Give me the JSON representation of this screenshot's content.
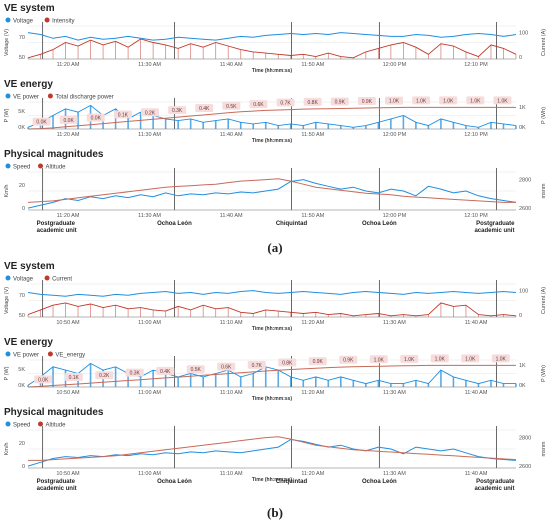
{
  "colors": {
    "blue": "#1f8fe0",
    "red": "#c0392b",
    "cum": "#c86a5a",
    "label_bg": "#f6dcdc",
    "vline": "#444444",
    "grid": "#e6e6e6",
    "axis": "#777777"
  },
  "x_axis_label": "Time (hh:mm:ss)",
  "figures": [
    {
      "id": "a",
      "sublabel": "(a)",
      "panels": [
        {
          "title": "VE system",
          "legend": [
            "Voltage",
            "Intensity"
          ],
          "ylabel_left": "Voltage (V)",
          "ylabel_right": "Current (A)",
          "left_ticks": [
            "50",
            "70"
          ],
          "right_ticks": [
            "0",
            "100"
          ],
          "x_ticks": [
            "11:20 AM",
            "11:30 AM",
            "11:40 AM",
            "11:50 AM",
            "12:00 PM",
            "12:10 PM"
          ],
          "xlabel": "Time (hh:mm:ss)",
          "vlines": [
            0.03,
            0.3,
            0.54,
            0.72,
            0.96
          ],
          "chart_data": {
            "type": "line",
            "x_range": [
              "11:17 AM",
              "12:13 PM"
            ],
            "series": [
              {
                "name": "Voltage",
                "axis": "left",
                "values": [
                  68,
                  66,
                  62,
                  64,
                  60,
                  63,
                  61,
                  62,
                  64,
                  62,
                  60,
                  61,
                  63,
                  62,
                  61,
                  60,
                  62,
                  64,
                  63,
                  65,
                  66,
                  67,
                  66,
                  67,
                  66,
                  68,
                  67,
                  66,
                  65,
                  64,
                  64,
                  66,
                  65,
                  63,
                  64,
                  66,
                  67,
                  66,
                  64,
                  66
                ]
              },
              {
                "name": "Intensity",
                "axis": "right",
                "values": [
                  5,
                  20,
                  40,
                  70,
                  55,
                  80,
                  60,
                  75,
                  50,
                  85,
                  70,
                  60,
                  45,
                  65,
                  50,
                  70,
                  55,
                  40,
                  30,
                  25,
                  20,
                  15,
                  20,
                  10,
                  25,
                  10,
                  5,
                  30,
                  45,
                  60,
                  70,
                  50,
                  20,
                  65,
                  55,
                  30,
                  10,
                  60,
                  45,
                  20
                ]
              }
            ]
          }
        },
        {
          "title": "VE energy",
          "legend": [
            "VE power",
            "Total discharge power"
          ],
          "ylabel_left": "P (W)",
          "ylabel_right": "P (Wh)",
          "left_ticks": [
            "0K",
            "5K"
          ],
          "right_ticks": [
            "0K",
            "1K"
          ],
          "x_ticks": [
            "11:20 AM",
            "11:30 AM",
            "11:40 AM",
            "11:50 AM",
            "12:00 PM",
            "12:10 PM"
          ],
          "xlabel": "Time (hh:mm:ss)",
          "vlines": [
            0.03,
            0.3,
            0.54,
            0.72,
            0.96
          ],
          "energy_labels": [
            "0.0K",
            "0.0K",
            "0.0K",
            "0.1K",
            "0.2K",
            "0.3K",
            "0.4K",
            "0.5K",
            "0.6K",
            "0.7K",
            "0.8K",
            "0.9K",
            "0.9K",
            "1.0K",
            "1.0K",
            "1.0K",
            "1.0K",
            "1.0K"
          ],
          "chart_data": {
            "type": "line",
            "series": [
              {
                "name": "VE power",
                "axis": "left",
                "values": [
                  0.5,
                  2,
                  4,
                  6,
                  5,
                  7,
                  4,
                  6,
                  3,
                  5,
                  4,
                  3,
                  2.5,
                  3,
                  2,
                  2.5,
                  3,
                  2,
                  1.5,
                  2,
                  1,
                  1.5,
                  1,
                  2,
                  1.5,
                  1,
                  0.5,
                  1,
                  2,
                  3,
                  4,
                  2,
                  1,
                  3,
                  2,
                  1,
                  0.5,
                  2,
                  1.5,
                  1
                ]
              },
              {
                "name": "Total discharge power",
                "axis": "right",
                "values": [
                  0.0,
                  0.02,
                  0.05,
                  0.1,
                  0.15,
                  0.2,
                  0.25,
                  0.3,
                  0.35,
                  0.4,
                  0.45,
                  0.5,
                  0.55,
                  0.6,
                  0.65,
                  0.7,
                  0.75,
                  0.8,
                  0.83,
                  0.86,
                  0.88,
                  0.9,
                  0.92,
                  0.93,
                  0.94,
                  0.95,
                  0.96,
                  0.97,
                  0.98,
                  0.99,
                  1.0,
                  1.0,
                  1.0,
                  1.0,
                  1.0,
                  1.0,
                  1.0,
                  1.0,
                  1.0,
                  1.0
                ]
              }
            ]
          }
        },
        {
          "title": "Physical magnitudes",
          "legend": [
            "Speed",
            "Altitude"
          ],
          "ylabel_left": "Km/h",
          "ylabel_right": "msnm",
          "left_ticks": [
            "0",
            "20"
          ],
          "right_ticks": [
            "2600",
            "2800"
          ],
          "x_ticks": [
            "11:20 AM",
            "11:30 AM",
            "11:40 AM",
            "11:50 AM",
            "12:00 PM",
            "12:10 PM"
          ],
          "xlabel": "",
          "vlines": [
            0.03,
            0.3,
            0.54,
            0.72,
            0.96
          ],
          "places": [
            "Postgraduate academic unit",
            "Ochoa León",
            "Chiquintad",
            "Ochoa León",
            "Postgraduate academic unit"
          ],
          "chart_data": {
            "type": "line",
            "series": [
              {
                "name": "Speed",
                "axis": "left",
                "values": [
                  2,
                  5,
                  8,
                  12,
                  10,
                  14,
                  12,
                  15,
                  13,
                  16,
                  14,
                  18,
                  15,
                  17,
                  16,
                  18,
                  17,
                  19,
                  18,
                  20,
                  22,
                  30,
                  32,
                  28,
                  25,
                  22,
                  24,
                  20,
                  18,
                  22,
                  20,
                  15,
                  25,
                  22,
                  18,
                  20,
                  15,
                  12,
                  10,
                  8
                ]
              },
              {
                "name": "Altitude",
                "axis": "right",
                "values": [
                  2600,
                  2605,
                  2610,
                  2620,
                  2630,
                  2640,
                  2650,
                  2660,
                  2670,
                  2680,
                  2690,
                  2700,
                  2705,
                  2710,
                  2715,
                  2720,
                  2730,
                  2740,
                  2745,
                  2750,
                  2755,
                  2740,
                  2720,
                  2700,
                  2690,
                  2680,
                  2670,
                  2660,
                  2655,
                  2650,
                  2640,
                  2635,
                  2630,
                  2625,
                  2620,
                  2615,
                  2610,
                  2605,
                  2600,
                  2600
                ]
              }
            ]
          }
        }
      ]
    },
    {
      "id": "b",
      "sublabel": "(b)",
      "panels": [
        {
          "title": "VE system",
          "legend": [
            "Voltage",
            "Current"
          ],
          "ylabel_left": "Voltage (V)",
          "ylabel_right": "Current (A)",
          "left_ticks": [
            "50",
            "70"
          ],
          "right_ticks": [
            "0",
            "100"
          ],
          "x_ticks": [
            "10:50 AM",
            "11:00 AM",
            "11:10 AM",
            "11:20 AM",
            "11:30 AM",
            "11:40 AM"
          ],
          "xlabel": "Time (hh:mm:ss)",
          "vlines": [
            0.03,
            0.3,
            0.54,
            0.72,
            0.96
          ],
          "chart_data": {
            "type": "line",
            "series": [
              {
                "name": "Voltage",
                "axis": "left",
                "values": [
                  66,
                  64,
                  63,
                  62,
                  64,
                  63,
                  62,
                  64,
                  63,
                  65,
                  66,
                  67,
                  65,
                  66,
                  64,
                  66,
                  65,
                  67,
                  68,
                  66,
                  65,
                  66,
                  67,
                  66,
                  65,
                  64,
                  66,
                  67,
                  66,
                  65,
                  64,
                  66,
                  65,
                  66,
                  67,
                  66,
                  65,
                  66,
                  67,
                  66
                ]
              },
              {
                "name": "Current",
                "axis": "right",
                "values": [
                  10,
                  30,
                  50,
                  60,
                  45,
                  55,
                  40,
                  50,
                  35,
                  40,
                  30,
                  25,
                  45,
                  30,
                  50,
                  35,
                  40,
                  20,
                  15,
                  30,
                  25,
                  20,
                  15,
                  20,
                  10,
                  15,
                  5,
                  10,
                  15,
                  5,
                  10,
                  5,
                  10,
                  60,
                  45,
                  50,
                  10,
                  5,
                  10,
                  5
                ]
              }
            ]
          }
        },
        {
          "title": "VE energy",
          "legend": [
            "VE power",
            "VE_energy"
          ],
          "ylabel_left": "P (W)",
          "ylabel_right": "P (Wh)",
          "left_ticks": [
            "0K",
            "5K"
          ],
          "right_ticks": [
            "0K",
            "1K"
          ],
          "x_ticks": [
            "10:50 AM",
            "11:00 AM",
            "11:10 AM",
            "11:20 AM",
            "11:30 AM",
            "11:40 AM"
          ],
          "xlabel": "Time (hh:mm:ss)",
          "vlines": [
            0.03,
            0.3,
            0.54,
            0.72,
            0.96
          ],
          "energy_labels": [
            "0.0K",
            "0.1K",
            "0.2K",
            "0.3K",
            "0.4K",
            "0.5K",
            "0.6K",
            "0.7K",
            "0.8K",
            "0.9K",
            "0.9K",
            "1.0K",
            "1.0K",
            "1.0K",
            "1.0K",
            "1.0K"
          ],
          "chart_data": {
            "type": "line",
            "series": [
              {
                "name": "VE power",
                "axis": "left",
                "values": [
                  0.5,
                  3,
                  6,
                  5,
                  4,
                  7,
                  5,
                  6,
                  4,
                  3,
                  5,
                  4,
                  3,
                  4,
                  3,
                  4,
                  5,
                  3,
                  4,
                  6,
                  5,
                  3,
                  2,
                  3,
                  2,
                  3,
                  2,
                  1,
                  2,
                  1,
                  1,
                  2,
                  1,
                  5,
                  3,
                  2,
                  1,
                  2,
                  1,
                  1
                ]
              },
              {
                "name": "VE_energy",
                "axis": "right",
                "values": [
                  0.0,
                  0.03,
                  0.07,
                  0.1,
                  0.14,
                  0.18,
                  0.22,
                  0.26,
                  0.3,
                  0.34,
                  0.38,
                  0.42,
                  0.46,
                  0.5,
                  0.54,
                  0.58,
                  0.62,
                  0.66,
                  0.7,
                  0.74,
                  0.78,
                  0.81,
                  0.84,
                  0.87,
                  0.9,
                  0.92,
                  0.94,
                  0.95,
                  0.96,
                  0.97,
                  0.98,
                  0.99,
                  1.0,
                  1.0,
                  1.0,
                  1.0,
                  1.0,
                  1.0,
                  1.0,
                  1.0
                ]
              }
            ]
          }
        },
        {
          "title": "Physical magnitudes",
          "legend": [
            "Speed",
            "Altitude"
          ],
          "ylabel_left": "Km/h",
          "ylabel_right": "msnm",
          "left_ticks": [
            "0",
            "20"
          ],
          "right_ticks": [
            "2600",
            "2800"
          ],
          "x_ticks": [
            "10:50 AM",
            "11:00 AM",
            "11:10 AM",
            "11:20 AM",
            "11:30 AM",
            "11:40 AM"
          ],
          "xlabel": "Time (hh:mm:ss)",
          "vlines": [
            0.03,
            0.3,
            0.54,
            0.72,
            0.96
          ],
          "places": [
            "Postgraduate academic unit",
            "Ochoa León",
            "Chiquintad",
            "Ochoa León",
            "Postgraduate academic unit"
          ],
          "chart_data": {
            "type": "line",
            "series": [
              {
                "name": "Speed",
                "axis": "left",
                "values": [
                  2,
                  6,
                  10,
                  12,
                  11,
                  13,
                  12,
                  14,
                  13,
                  15,
                  14,
                  16,
                  15,
                  17,
                  16,
                  18,
                  17,
                  16,
                  18,
                  20,
                  22,
                  30,
                  28,
                  25,
                  22,
                  24,
                  20,
                  18,
                  22,
                  20,
                  15,
                  22,
                  20,
                  18,
                  20,
                  16,
                  12,
                  10,
                  9,
                  8
                ]
              },
              {
                "name": "Altitude",
                "axis": "right",
                "values": [
                  2600,
                  2600,
                  2605,
                  2610,
                  2615,
                  2620,
                  2625,
                  2630,
                  2640,
                  2650,
                  2660,
                  2670,
                  2680,
                  2690,
                  2700,
                  2710,
                  2720,
                  2730,
                  2740,
                  2750,
                  2755,
                  2740,
                  2720,
                  2700,
                  2690,
                  2680,
                  2670,
                  2665,
                  2660,
                  2655,
                  2650,
                  2645,
                  2640,
                  2635,
                  2630,
                  2625,
                  2620,
                  2615,
                  2610,
                  2605
                ]
              }
            ]
          }
        }
      ]
    }
  ]
}
